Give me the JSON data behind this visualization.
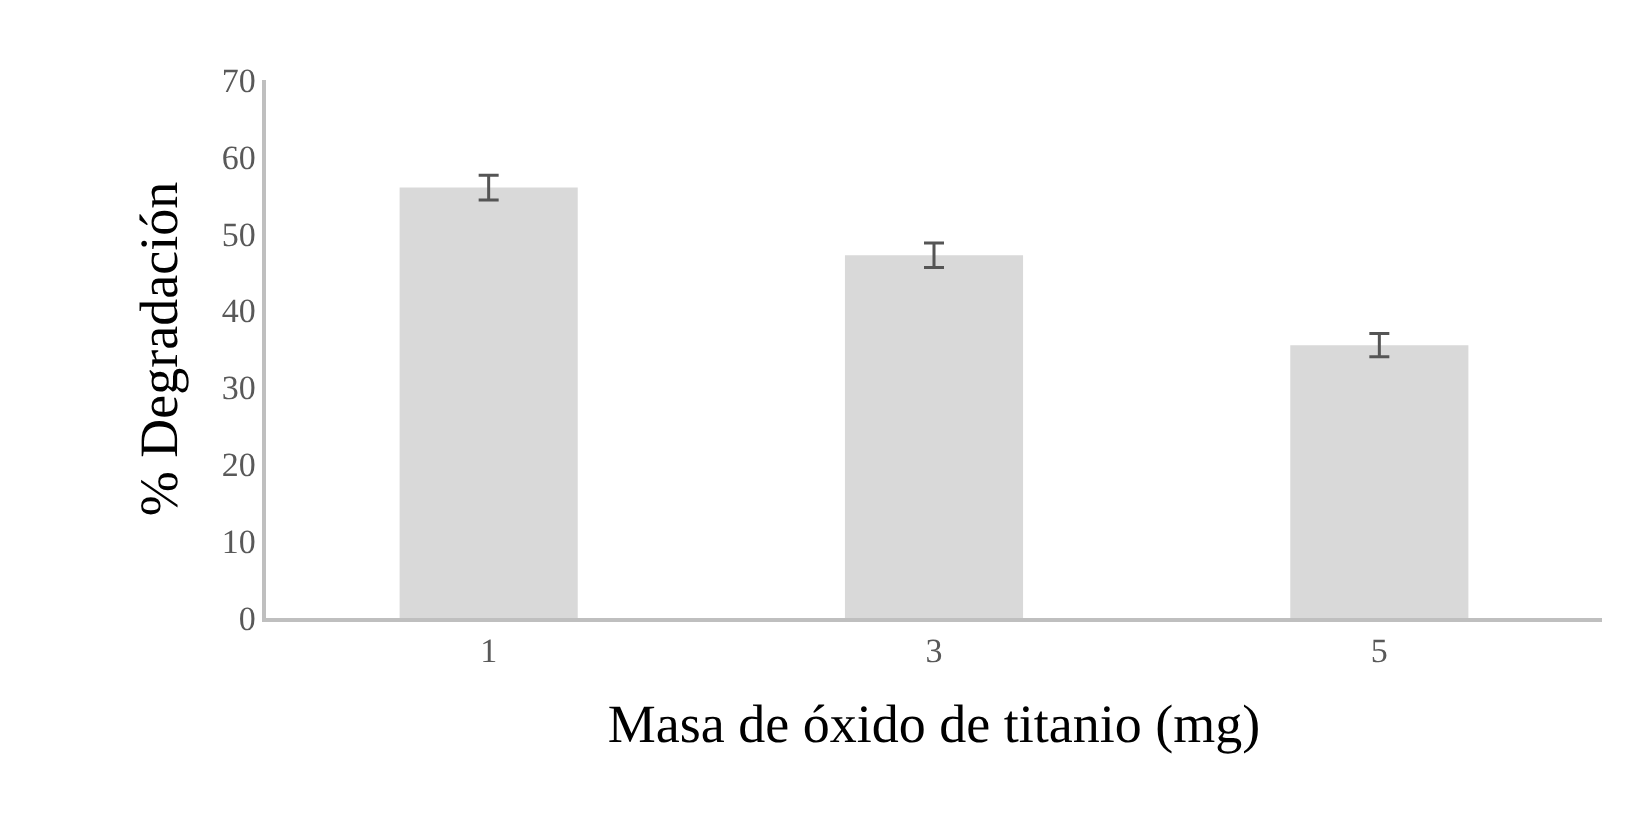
{
  "chart_data": {
    "type": "bar",
    "xlabel": "Masa de óxido de titanio (mg)",
    "ylabel": "% Degradación",
    "categories": [
      "1",
      "3",
      "5"
    ],
    "values": [
      56,
      47.2,
      35.5
    ],
    "errors": [
      1.6,
      1.6,
      1.5
    ],
    "color": "#d9d9d9",
    "ylim": [
      0,
      70
    ],
    "yticks": [
      0,
      10,
      20,
      30,
      40,
      50,
      60,
      70
    ],
    "grid": false,
    "legend": false
  }
}
